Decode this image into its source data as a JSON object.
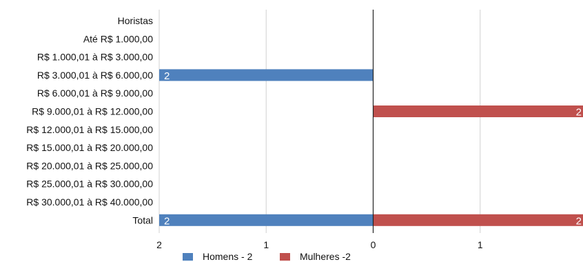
{
  "chart_data": {
    "type": "bar",
    "orientation": "horizontal",
    "layout": "diverging",
    "categories": [
      "Horistas",
      "Até R$ 1.000,00",
      "R$ 1.000,01 à R$ 3.000,00",
      "R$ 3.000,01 à R$ 6.000,00",
      "R$ 6.000,01 à R$ 9.000,00",
      "R$ 9.000,01 à R$ 12.000,00",
      "R$ 12.000,01 à R$ 15.000,00",
      "R$ 15.000,01 à R$ 20.000,00",
      "R$ 20.000,01 à R$ 25.000,00",
      "R$ 25.000,01 à R$ 30.000,00",
      "R$ 30.000,01 à R$ 40.000,00",
      "Total"
    ],
    "series": [
      {
        "name": "Homens - 2",
        "color": "#4f81bd",
        "side": "left",
        "values": [
          0,
          0,
          0,
          2,
          0,
          0,
          0,
          0,
          0,
          0,
          0,
          2
        ]
      },
      {
        "name": "Mulheres -2",
        "color": "#c0504d",
        "side": "right",
        "values": [
          0,
          0,
          0,
          0,
          0,
          2,
          0,
          0,
          0,
          0,
          0,
          2
        ]
      }
    ],
    "x_ticks": [
      "2",
      "1",
      "0",
      "1"
    ],
    "xlim": [
      -2,
      2
    ],
    "grid": true,
    "legend_position": "bottom",
    "data_labels": true
  }
}
